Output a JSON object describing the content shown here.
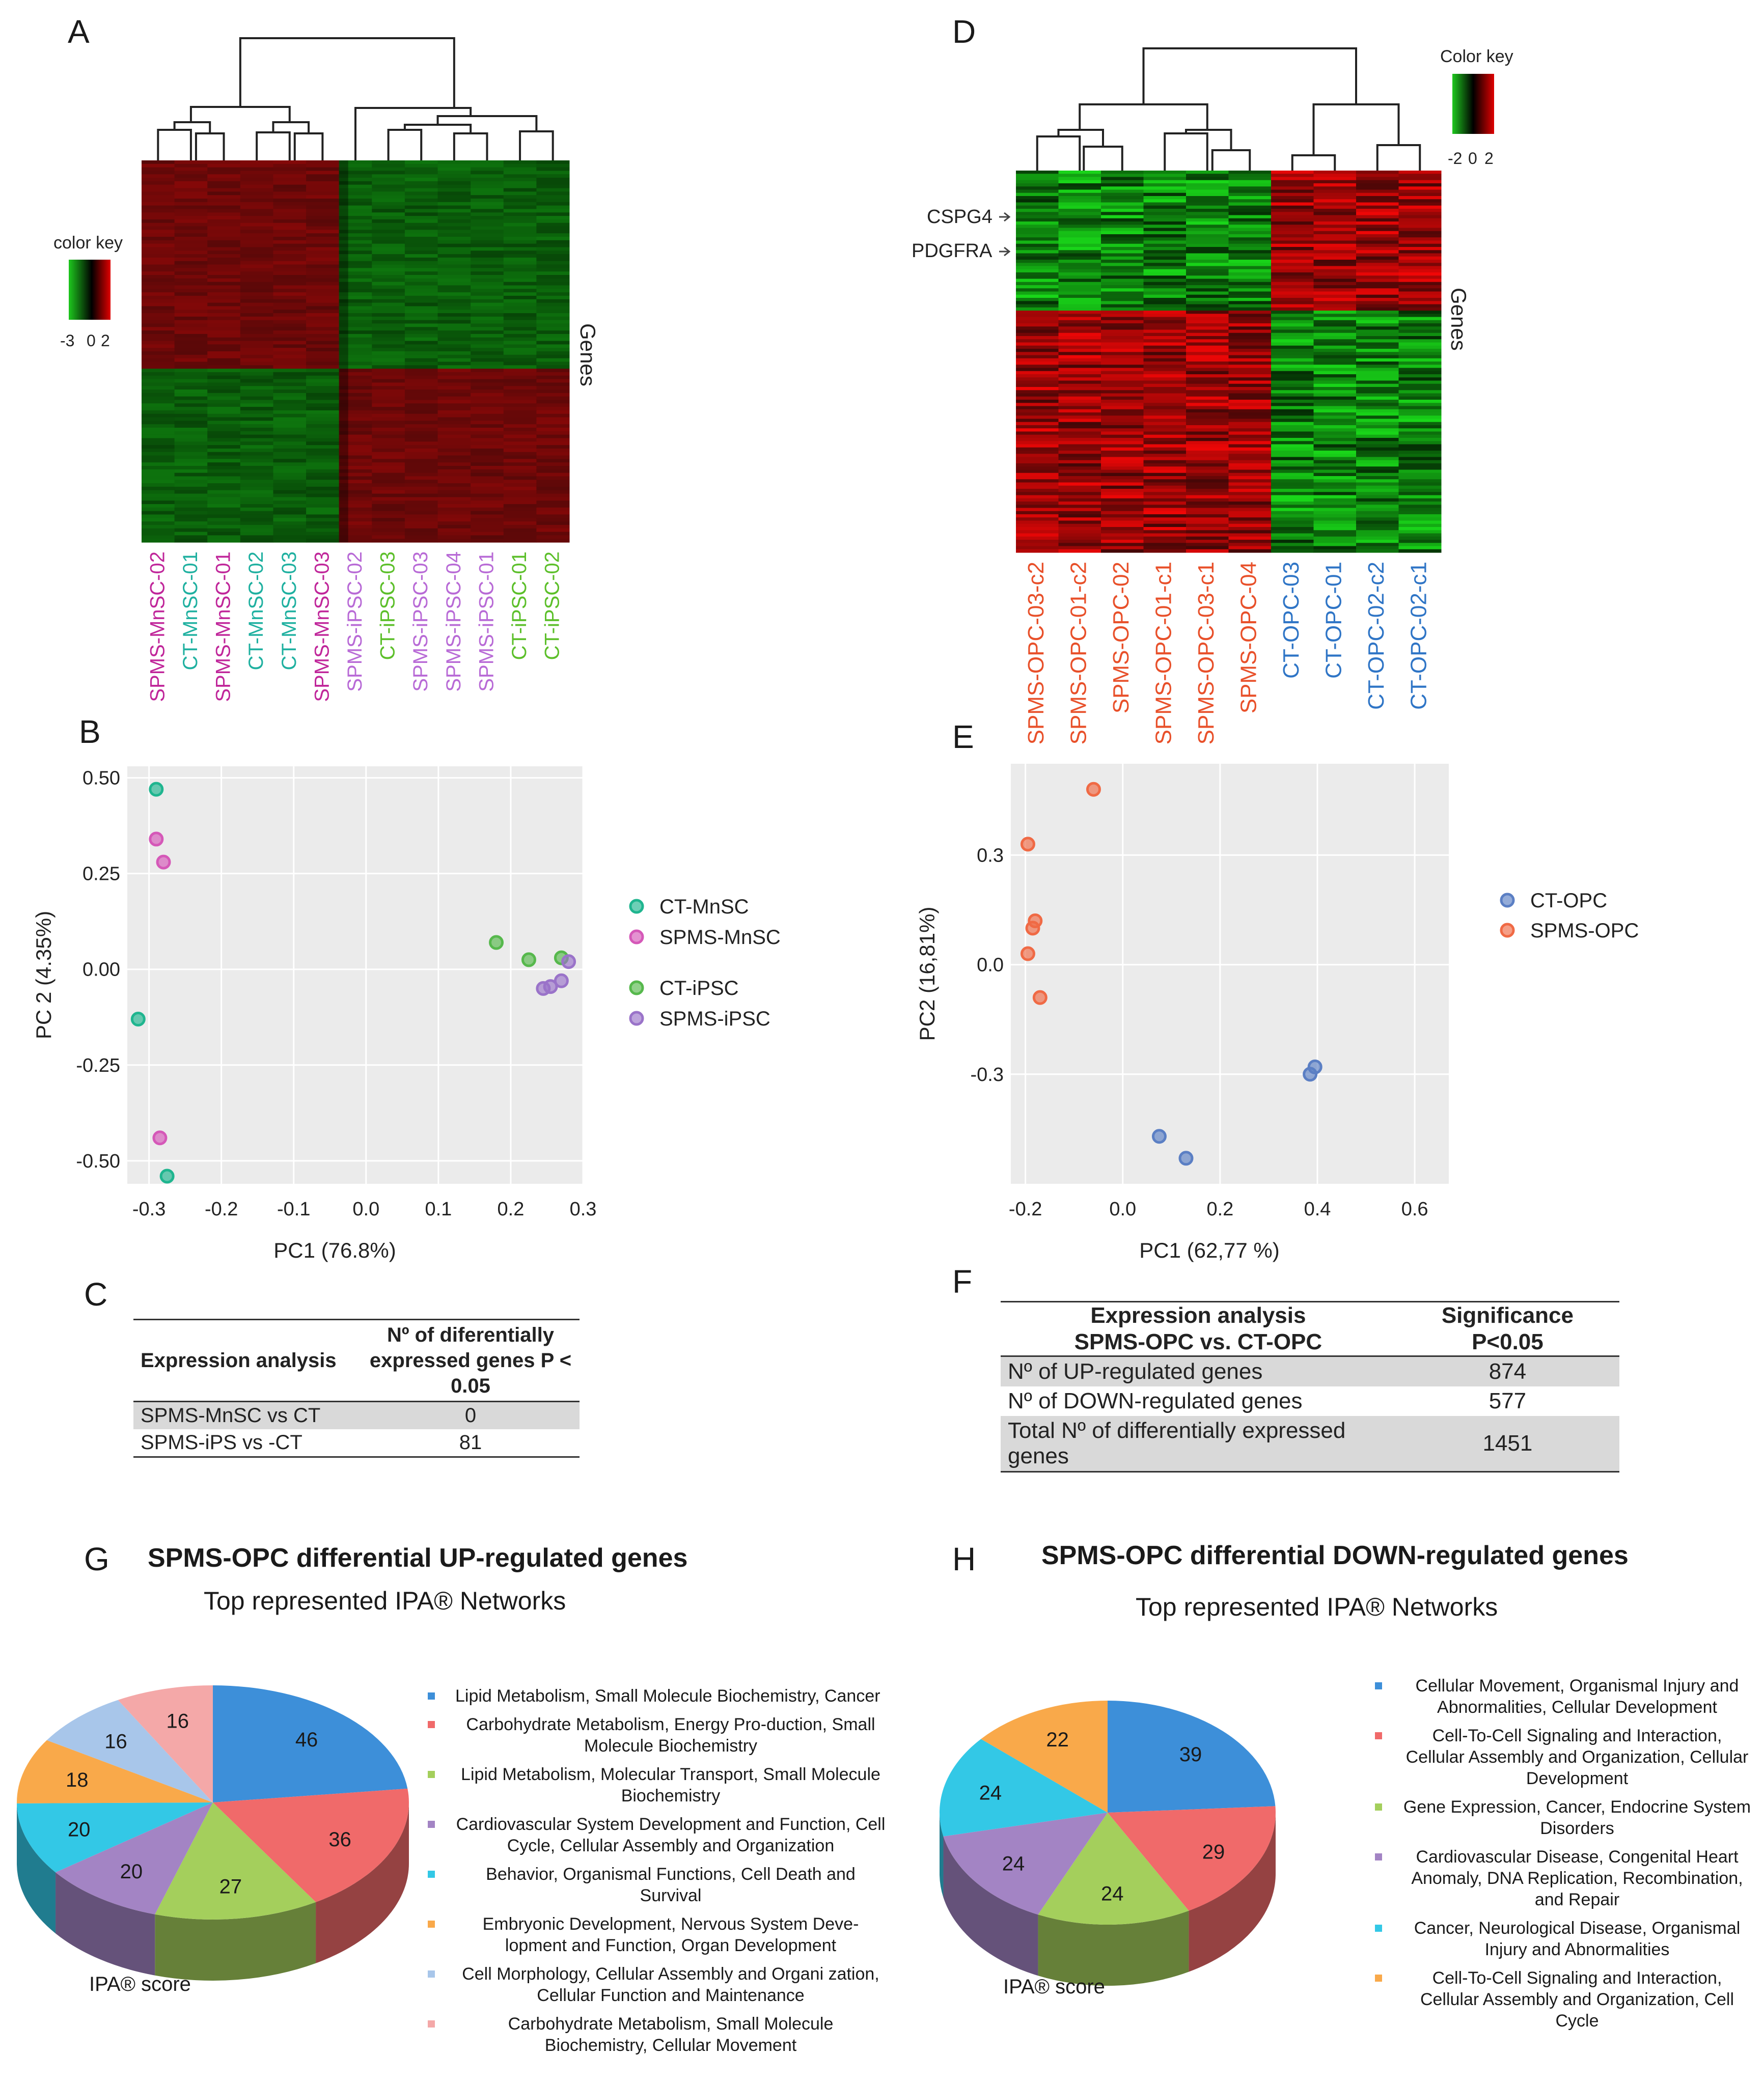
{
  "panel_labels": {
    "A": "A",
    "B": "B",
    "C": "C",
    "D": "D",
    "E": "E",
    "F": "F",
    "G": "G",
    "H": "H"
  },
  "colors": {
    "red": "#cc0000",
    "green": "#1aa01a",
    "teal": "#1fb0a0",
    "magenta": "#c0269a",
    "lime": "#5cbf2a",
    "violet": "#b86ad6",
    "orange": "#e8502a",
    "blue": "#2f75c6"
  },
  "chart_data": [
    {
      "id": "A",
      "type": "heatmap",
      "color_key": {
        "title": "color key",
        "ticks": [
          "-3",
          "0",
          "2"
        ]
      },
      "axis_label": "Genes",
      "columns": [
        {
          "name": "SPMS-MnSC-02",
          "group": "magenta"
        },
        {
          "name": "CT-MnSC-01",
          "group": "teal"
        },
        {
          "name": "SPMS-MnSC-01",
          "group": "magenta"
        },
        {
          "name": "CT-MnSC-02",
          "group": "teal"
        },
        {
          "name": "CT-MnSC-03",
          "group": "teal"
        },
        {
          "name": "SPMS-MnSC-03",
          "group": "magenta"
        },
        {
          "name": "SPMS-iPSC-02",
          "group": "violet"
        },
        {
          "name": "CT-iPSC-03",
          "group": "lime"
        },
        {
          "name": "SPMS-iPSC-03",
          "group": "violet"
        },
        {
          "name": "SPMS-iPSC-04",
          "group": "violet"
        },
        {
          "name": "SPMS-iPSC-01",
          "group": "violet"
        },
        {
          "name": "CT-iPSC-01",
          "group": "lime"
        },
        {
          "name": "CT-iPSC-02",
          "group": "lime"
        }
      ]
    },
    {
      "id": "B",
      "type": "scatter",
      "xlabel": "PC1 (76.8%)",
      "ylabel": "PC 2 (4.35%)",
      "xlim": [
        -0.33,
        0.3
      ],
      "ylim": [
        -0.56,
        0.53
      ],
      "xticks": [
        "-0.3",
        "-0.2",
        "-0.1",
        "0.0",
        "0.1",
        "0.2",
        "0.3"
      ],
      "xtick_vals": [
        -0.3,
        -0.2,
        -0.1,
        0.0,
        0.1,
        0.2,
        0.3
      ],
      "yticks": [
        "0.50",
        "0.25",
        "0.00",
        "-0.25",
        "-0.50"
      ],
      "ytick_vals": [
        0.5,
        0.25,
        0.0,
        -0.25,
        -0.5
      ],
      "series": [
        {
          "name": "CT-MnSC",
          "color": "#1fb58f",
          "points": [
            [
              -0.29,
              0.47
            ],
            [
              -0.315,
              -0.13
            ],
            [
              -0.275,
              -0.54
            ]
          ]
        },
        {
          "name": "SPMS-MnSC",
          "color": "#d558b8",
          "points": [
            [
              -0.29,
              0.34
            ],
            [
              -0.28,
              0.28
            ],
            [
              -0.285,
              -0.44
            ]
          ]
        },
        {
          "name": "CT-iPSC",
          "color": "#56b84c",
          "points": [
            [
              0.18,
              0.07
            ],
            [
              0.225,
              0.025
            ],
            [
              0.27,
              0.03
            ]
          ]
        },
        {
          "name": "SPMS-iPSC",
          "color": "#9a73c9",
          "points": [
            [
              0.245,
              -0.05
            ],
            [
              0.255,
              -0.045
            ],
            [
              0.27,
              -0.03
            ],
            [
              0.28,
              0.02
            ]
          ]
        }
      ]
    },
    {
      "id": "C",
      "type": "table",
      "headers": [
        "Expression analysis",
        "Nº of diferentially expressed genes P < 0.05"
      ],
      "rows": [
        [
          "SPMS-MnSC vs CT",
          "0"
        ],
        [
          "SPMS-iPS vs -CT",
          "81"
        ]
      ]
    },
    {
      "id": "D",
      "type": "heatmap",
      "color_key": {
        "title": "Color key",
        "ticks": [
          "-2",
          "0",
          "2"
        ]
      },
      "axis_label": "Genes",
      "gene_labels": [
        "CSPG4",
        "PDGFRA"
      ],
      "columns": [
        {
          "name": "SPMS-OPC-03-c2",
          "group": "orange"
        },
        {
          "name": "SPMS-OPC-01-c2",
          "group": "orange"
        },
        {
          "name": "SPMS-OPC-02",
          "group": "orange"
        },
        {
          "name": "SPMS-OPC-01-c1",
          "group": "orange"
        },
        {
          "name": "SPMS-OPC-03-c1",
          "group": "orange"
        },
        {
          "name": "SPMS-OPC-04",
          "group": "orange"
        },
        {
          "name": "CT-OPC-03",
          "group": "blue"
        },
        {
          "name": "CT-OPC-01",
          "group": "blue"
        },
        {
          "name": "CT-OPC-02-c2",
          "group": "blue"
        },
        {
          "name": "CT-OPC-02-c1",
          "group": "blue"
        }
      ]
    },
    {
      "id": "E",
      "type": "scatter",
      "xlabel": "PC1 (62,77 %)",
      "ylabel": "PC2 (16,81%)",
      "xlim": [
        -0.23,
        0.67
      ],
      "ylim": [
        -0.6,
        0.55
      ],
      "xticks": [
        "-0.2",
        "0.0",
        "0.2",
        "0.4",
        "0.6"
      ],
      "xtick_vals": [
        -0.2,
        0.0,
        0.2,
        0.4,
        0.6
      ],
      "yticks": [
        "0.3",
        "0.0",
        "-0.3"
      ],
      "ytick_vals": [
        0.3,
        0.0,
        -0.3
      ],
      "series": [
        {
          "name": "CT-OPC",
          "color": "#5b7fc4",
          "points": [
            [
              0.385,
              -0.3
            ],
            [
              0.395,
              -0.28
            ],
            [
              0.075,
              -0.47
            ],
            [
              0.13,
              -0.53
            ]
          ]
        },
        {
          "name": "SPMS-OPC",
          "color": "#f06a45",
          "points": [
            [
              -0.06,
              0.48
            ],
            [
              -0.195,
              0.33
            ],
            [
              -0.18,
              0.12
            ],
            [
              -0.185,
              0.1
            ],
            [
              -0.195,
              0.03
            ],
            [
              -0.17,
              -0.09
            ]
          ]
        }
      ]
    },
    {
      "id": "F",
      "type": "table",
      "headers": [
        "Expression analysis SPMS-OPC vs. CT-OPC",
        "Significance P<0.05"
      ],
      "rows": [
        [
          "Nº of UP-regulated genes",
          "874"
        ],
        [
          "Nº of DOWN-regulated genes",
          "577"
        ],
        [
          "Total Nº of differentially expressed genes",
          "1451"
        ]
      ]
    },
    {
      "id": "G",
      "type": "pie",
      "title": "SPMS-OPC differential UP-regulated genes",
      "subtitle": "Top represented IPA® Networks",
      "caption": "IPA® score",
      "slices": [
        {
          "label": "Lipid Metabolism, Small Molecule Biochemistry, Cancer",
          "value": 46,
          "color": "#3d8fd9"
        },
        {
          "label": "Carbohydrate Metabolism, Energy Pro-duction, Small Molecule Biochemistry",
          "value": 36,
          "color": "#f06a6a"
        },
        {
          "label": "Lipid Metabolism, Molecular Transport, Small Molecule Biochemistry",
          "value": 27,
          "color": "#a4cf5c"
        },
        {
          "label": "Cardiovascular System Development and Function, Cell Cycle, Cellular Assembly and Organization",
          "value": 20,
          "color": "#a384c4"
        },
        {
          "label": "Behavior, Organismal Functions, Cell Death and Survival",
          "value": 20,
          "color": "#33c8e6"
        },
        {
          "label": "Embryonic Development, Nervous System Deve-lopment and Function, Organ Development",
          "value": 18,
          "color": "#f9a94a"
        },
        {
          "label": "Cell Morphology, Cellular Assembly and Organi zation, Cellular Function and Maintenance",
          "value": 16,
          "color": "#a8c6ea"
        },
        {
          "label": "Carbohydrate Metabolism, Small Molecule Biochemistry, Cellular Movement",
          "value": 16,
          "color": "#f4a8a8"
        }
      ]
    },
    {
      "id": "H",
      "type": "pie",
      "title": "SPMS-OPC differential DOWN-regulated genes",
      "subtitle": "Top represented IPA® Networks",
      "caption": "IPA®  score",
      "slices": [
        {
          "label": "Cellular Movement, Organismal Injury and Abnormalities, Cellular Development",
          "value": 39,
          "color": "#3d8fd9"
        },
        {
          "label": "Cell-To-Cell Signaling and Interaction, Cellular Assembly and Organization, Cellular Development",
          "value": 29,
          "color": "#f06a6a"
        },
        {
          "label": "Gene Expression, Cancer, Endocrine System Disorders",
          "value": 24,
          "color": "#a4cf5c"
        },
        {
          "label": "Cardiovascular Disease, Congenital Heart Anomaly, DNA Replication, Recombination, and Repair",
          "value": 24,
          "color": "#a384c4"
        },
        {
          "label": "Cancer, Neurological Disease, Organismal Injury and Abnormalities",
          "value": 24,
          "color": "#33c8e6"
        },
        {
          "label": "Cell-To-Cell Signaling and Interaction, Cellular Assembly and Organization, Cell Cycle",
          "value": 22,
          "color": "#f9a94a"
        }
      ]
    }
  ]
}
